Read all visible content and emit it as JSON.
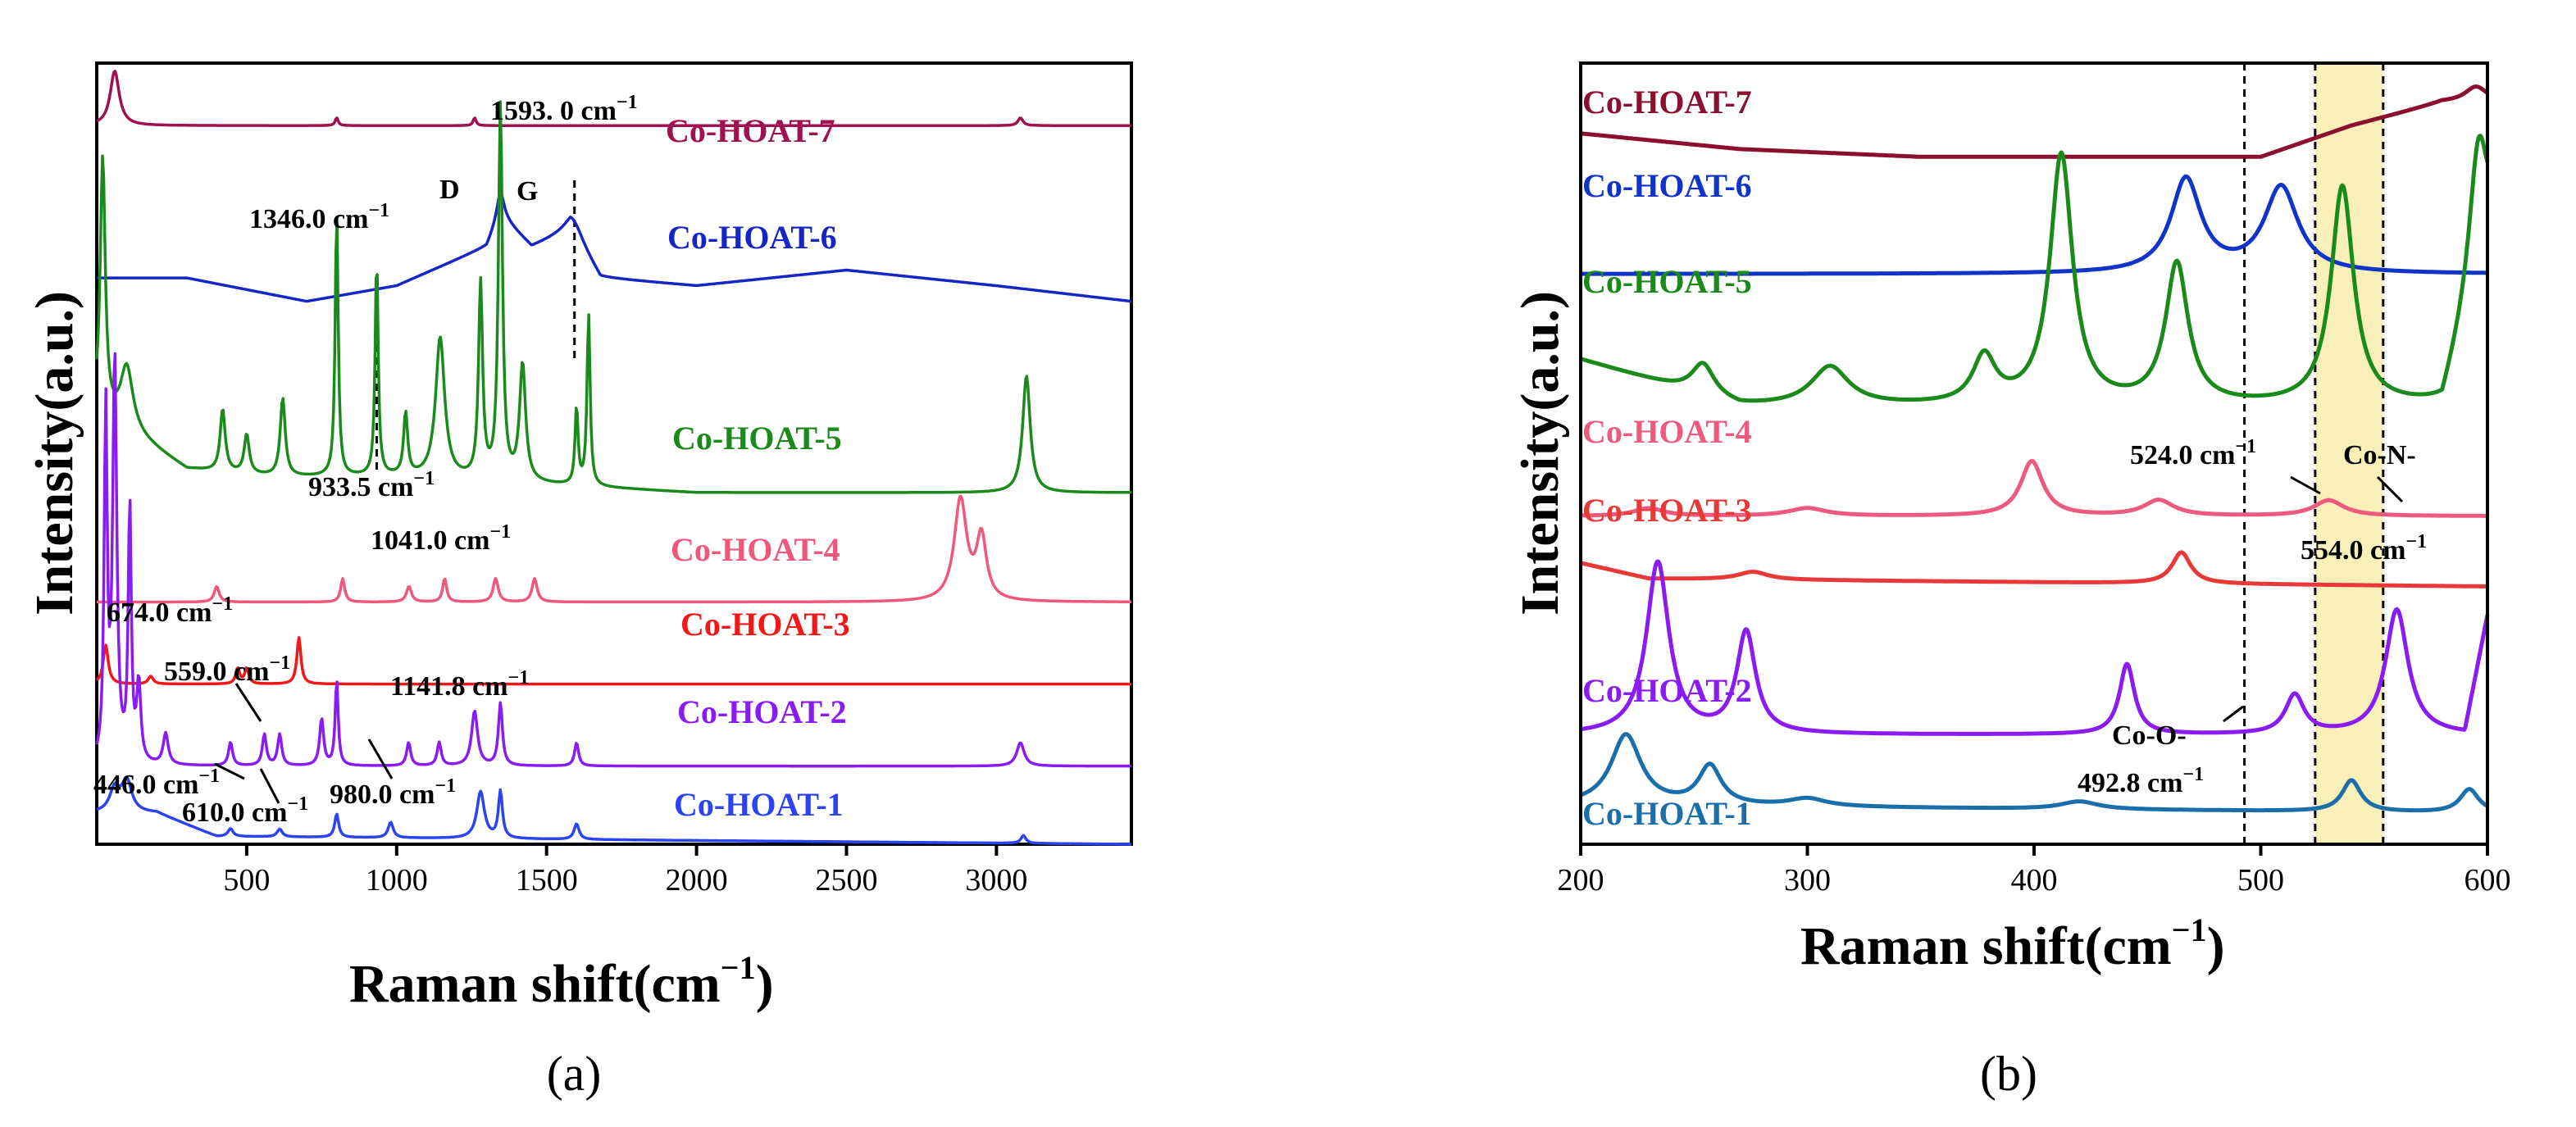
{
  "chart_data": [
    {
      "panel": "(a)",
      "type": "line",
      "xlabel": "Raman shift(cm",
      "xlabel_sup": "−1",
      "xlabel_tail": ")",
      "ylabel": "Intensity(a.u.)",
      "xlim": [
        0,
        3450
      ],
      "x_ticks": [
        500,
        1000,
        1500,
        2000,
        2500,
        3000
      ],
      "x_tick_labels": [
        "500",
        "1000",
        "1500",
        "2000",
        "2500",
        "3000"
      ],
      "series": [
        {
          "name": "Co-HOAT-7",
          "label": "Co-HOAT-7",
          "color": "#a0104f",
          "offset": 0.9,
          "base": [
            [
              0,
              0.02
            ],
            [
              3450,
              0.02
            ]
          ],
          "peaks": [
            [
              60,
              0.07,
              18
            ],
            [
              800,
              0.01,
              6
            ],
            [
              1260,
              0.01,
              6
            ],
            [
              3080,
              0.01,
              10
            ]
          ]
        },
        {
          "name": "Co-HOAT-6",
          "label": "Co-HOAT-6",
          "color": "#1526c4",
          "offset": 0.695,
          "base": [
            [
              0,
              0.03
            ],
            [
              300,
              0.03
            ],
            [
              700,
              0.0
            ],
            [
              1000,
              0.02
            ],
            [
              1300,
              0.07
            ],
            [
              1346,
              0.11
            ],
            [
              1450,
              0.07
            ],
            [
              1580,
              0.09
            ],
            [
              1680,
              0.03
            ],
            [
              2000,
              0.02
            ],
            [
              2500,
              0.04
            ],
            [
              3000,
              0.02
            ],
            [
              3450,
              0.0
            ]
          ],
          "peaks": [
            [
              1346,
              0.03,
              15
            ],
            [
              1593,
              0.02,
              40
            ]
          ]
        },
        {
          "name": "Co-HOAT-5",
          "label": "Co-HOAT-5",
          "color": "#1a8a1a",
          "offset": 0.45,
          "base": [
            [
              0,
              0.1
            ],
            [
              100,
              0.08
            ],
            [
              300,
              0.03
            ],
            [
              600,
              0.02
            ],
            [
              1000,
              0.02
            ],
            [
              2000,
              0.0
            ],
            [
              3000,
              0.0
            ],
            [
              3450,
              0.0
            ]
          ],
          "peaks": [
            [
              20,
              0.33,
              10
            ],
            [
              100,
              0.08,
              25
            ],
            [
              420,
              0.08,
              10
            ],
            [
              500,
              0.05,
              10
            ],
            [
              620,
              0.1,
              10
            ],
            [
              800,
              0.34,
              6
            ],
            [
              933.5,
              0.28,
              6
            ],
            [
              1030,
              0.08,
              8
            ],
            [
              1145,
              0.18,
              18
            ],
            [
              1280,
              0.25,
              8
            ],
            [
              1346,
              0.48,
              8
            ],
            [
              1420,
              0.15,
              12
            ],
            [
              1600,
              0.1,
              6
            ],
            [
              1640,
              0.22,
              6
            ],
            [
              3100,
              0.15,
              15
            ]
          ]
        },
        {
          "name": "Co-HOAT-4",
          "label": "Co-HOAT-4",
          "color": "#f0587b",
          "offset": 0.29,
          "base": [
            [
              0,
              0.02
            ],
            [
              2700,
              0.02
            ],
            [
              3000,
              0.02
            ],
            [
              3450,
              0.02
            ]
          ],
          "peaks": [
            [
              400,
              0.02,
              10
            ],
            [
              820,
              0.03,
              8
            ],
            [
              1041,
              0.02,
              10
            ],
            [
              1160,
              0.03,
              8
            ],
            [
              1330,
              0.03,
              10
            ],
            [
              1460,
              0.03,
              10
            ],
            [
              2880,
              0.13,
              25
            ],
            [
              2950,
              0.08,
              20
            ]
          ]
        },
        {
          "name": "Co-HOAT-3",
          "label": "Co-HOAT-3",
          "color": "#f21818",
          "offset": 0.205,
          "base": [
            [
              0,
              0.0
            ],
            [
              3450,
              0.0
            ]
          ],
          "peaks": [
            [
              30,
              0.05,
              10
            ],
            [
              180,
              0.01,
              10
            ],
            [
              470,
              0.02,
              8
            ],
            [
              500,
              0.02,
              8
            ],
            [
              674,
              0.06,
              8
            ]
          ]
        },
        {
          "name": "Co-HOAT-2",
          "label": "Co-HOAT-2",
          "color": "#8a1bf2",
          "offset": 0.1,
          "base": [
            [
              0,
              0.0
            ],
            [
              3450,
              0.0
            ]
          ],
          "peaks": [
            [
              30,
              0.45,
              6
            ],
            [
              60,
              0.52,
              8
            ],
            [
              110,
              0.33,
              6
            ],
            [
              140,
              0.1,
              8
            ],
            [
              230,
              0.04,
              10
            ],
            [
              446,
              0.03,
              8
            ],
            [
              559,
              0.04,
              8
            ],
            [
              610,
              0.04,
              8
            ],
            [
              750,
              0.06,
              8
            ],
            [
              800,
              0.11,
              6
            ],
            [
              1040,
              0.03,
              8
            ],
            [
              1141.8,
              0.03,
              8
            ],
            [
              1260,
              0.07,
              12
            ],
            [
              1346,
              0.08,
              8
            ],
            [
              1600,
              0.03,
              8
            ],
            [
              3080,
              0.03,
              15
            ]
          ]
        },
        {
          "name": "Co-HOAT-1",
          "label": "Co-HOAT-1",
          "color": "#2a45f0",
          "offset": 0.0,
          "base": [
            [
              0,
              0.04
            ],
            [
              200,
              0.04
            ],
            [
              400,
              0.01
            ],
            [
              3450,
              0.0
            ]
          ],
          "peaks": [
            [
              60,
              0.03,
              20
            ],
            [
              100,
              0.04,
              20
            ],
            [
              446,
              0.01,
              10
            ],
            [
              610,
              0.01,
              10
            ],
            [
              800,
              0.03,
              8
            ],
            [
              980,
              0.02,
              10
            ],
            [
              1280,
              0.06,
              15
            ],
            [
              1346,
              0.06,
              8
            ],
            [
              1600,
              0.02,
              10
            ],
            [
              3090,
              0.01,
              10
            ]
          ]
        }
      ],
      "dashed_lines": [
        {
          "x": 933.5,
          "label": "933.5 cm",
          "sup": "−1"
        },
        {
          "x": 1593.0,
          "label": "1593. 0 cm",
          "sup": "−1"
        }
      ],
      "annotations": [
        {
          "text": "1346.0 cm",
          "sup": "−1"
        },
        {
          "text": "D"
        },
        {
          "text": "G"
        },
        {
          "text": "1041.0 cm",
          "sup": "−1"
        },
        {
          "text": "674.0 cm",
          "sup": "−1"
        },
        {
          "text": "559.0 cm",
          "sup": "−1"
        },
        {
          "text": "1141.8 cm",
          "sup": "−1"
        },
        {
          "text": "446.0 cm",
          "sup": "−1"
        },
        {
          "text": "610.0 cm",
          "sup": "−1"
        },
        {
          "text": "980.0 cm",
          "sup": "−1"
        }
      ]
    },
    {
      "panel": "(b)",
      "type": "line",
      "xlabel": "Raman shift(cm",
      "xlabel_sup": "−1",
      "xlabel_tail": ")",
      "ylabel": "Intensity(a.u.)",
      "xlim": [
        200,
        600
      ],
      "x_ticks": [
        200,
        300,
        400,
        500,
        600
      ],
      "x_tick_labels": [
        "200",
        "300",
        "400",
        "500",
        "600"
      ],
      "highlight_range": [
        524.0,
        554.0
      ],
      "dashed_lines": [
        492.8,
        524.0,
        554.0
      ],
      "series": [
        {
          "name": "Co-HOAT-7",
          "label": "Co-HOAT-7",
          "color": "#8b1030",
          "offset": 0.88,
          "base": [
            [
              200,
              0.03
            ],
            [
              270,
              0.01
            ],
            [
              350,
              0.0
            ],
            [
              420,
              0.0
            ],
            [
              500,
              0.0
            ],
            [
              540,
              0.04
            ],
            [
              580,
              0.07
            ],
            [
              600,
              0.07
            ]
          ],
          "peaks": [
            [
              595,
              0.02,
              6
            ]
          ]
        },
        {
          "name": "Co-HOAT-6",
          "label": "Co-HOAT-6",
          "color": "#1033c8",
          "offset": 0.73,
          "base": [
            [
              200,
              0.0
            ],
            [
              600,
              0.0
            ]
          ],
          "peaks": [
            [
              467,
              0.12,
              8
            ],
            [
              509,
              0.11,
              9
            ]
          ]
        },
        {
          "name": "Co-HOAT-5",
          "label": "Co-HOAT-5",
          "color": "#1a8a1a",
          "offset": 0.56,
          "base": [
            [
              200,
              0.06
            ],
            [
              270,
              0.0
            ],
            [
              300,
              0.0
            ],
            [
              450,
              0.0
            ],
            [
              560,
              0.0
            ],
            [
              580,
              0.0
            ],
            [
              600,
              0.2
            ]
          ],
          "peaks": [
            [
              254,
              0.04,
              6
            ],
            [
              310,
              0.05,
              10
            ],
            [
              378,
              0.06,
              6
            ],
            [
              412,
              0.32,
              6
            ],
            [
              463,
              0.18,
              6
            ],
            [
              536,
              0.28,
              6
            ],
            [
              596,
              0.18,
              5
            ]
          ]
        },
        {
          "name": "Co-HOAT-4",
          "label": "Co-HOAT-4",
          "color": "#ee5a7e",
          "offset": 0.42,
          "base": [
            [
              200,
              0.0
            ],
            [
              600,
              0.0
            ]
          ],
          "peaks": [
            [
              230,
              0.01,
              8
            ],
            [
              300,
              0.01,
              10
            ],
            [
              399,
              0.07,
              6
            ],
            [
              455,
              0.02,
              8
            ],
            [
              530,
              0.02,
              8
            ]
          ]
        },
        {
          "name": "Co-HOAT-3",
          "label": "Co-HOAT-3",
          "color": "#e83838",
          "offset": 0.33,
          "base": [
            [
              200,
              0.03
            ],
            [
              230,
              0.01
            ],
            [
              600,
              0.0
            ]
          ],
          "peaks": [
            [
              276,
              0.01,
              8
            ],
            [
              465,
              0.04,
              5
            ]
          ]
        },
        {
          "name": "Co-HOAT-2",
          "label": "Co-HOAT-2",
          "color": "#8a1bf2",
          "offset": 0.14,
          "base": [
            [
              200,
              0.0
            ],
            [
              590,
              0.0
            ],
            [
              600,
              0.15
            ]
          ],
          "peaks": [
            [
              234,
              0.22,
              6
            ],
            [
              273,
              0.13,
              5
            ],
            [
              441,
              0.09,
              4
            ],
            [
              515,
              0.05,
              5
            ],
            [
              560,
              0.16,
              6
            ]
          ]
        },
        {
          "name": "Co-HOAT-1",
          "label": "Co-HOAT-1",
          "color": "#1a6eaa",
          "offset": 0.04,
          "base": [
            [
              200,
              0.01
            ],
            [
              600,
              0.0
            ]
          ],
          "peaks": [
            [
              220,
              0.09,
              8
            ],
            [
              257,
              0.05,
              6
            ],
            [
              300,
              0.01,
              10
            ],
            [
              420,
              0.01,
              10
            ],
            [
              540,
              0.04,
              5
            ],
            [
              592,
              0.03,
              5
            ]
          ]
        }
      ],
      "annotations": [
        {
          "text": "524.0 cm",
          "sup": "−1"
        },
        {
          "text": "Co-N-"
        },
        {
          "text": "554.0 cm",
          "sup": "−1"
        },
        {
          "text": "Co-O-"
        },
        {
          "text": "492.8 cm",
          "sup": "−1"
        }
      ]
    }
  ]
}
